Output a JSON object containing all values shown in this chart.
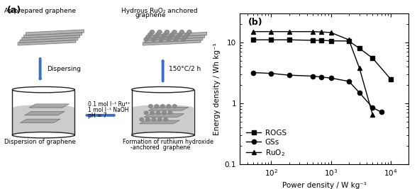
{
  "title_a": "(a)",
  "title_b": "(b)",
  "xlabel": "Power density / W kg⁻¹",
  "ylabel": "Energy density / Wh kg⁻¹",
  "ROGS_x": [
    50,
    100,
    200,
    500,
    700,
    1000,
    2000,
    3000,
    5000,
    10000
  ],
  "ROGS_y": [
    11.0,
    11.0,
    11.0,
    10.8,
    10.8,
    10.6,
    10.5,
    8.0,
    5.5,
    2.5
  ],
  "GSs_x": [
    50,
    100,
    200,
    500,
    700,
    1000,
    2000,
    3000,
    5000,
    7000
  ],
  "GSs_y": [
    3.2,
    3.1,
    2.9,
    2.8,
    2.7,
    2.6,
    2.3,
    1.5,
    0.85,
    0.72
  ],
  "RuO2_x": [
    50,
    100,
    200,
    500,
    700,
    1000,
    2000,
    3000,
    5000
  ],
  "RuO2_y": [
    15.0,
    15.0,
    15.0,
    15.0,
    14.8,
    14.5,
    11.0,
    3.8,
    0.65
  ],
  "xlim": [
    30,
    20000
  ],
  "ylim": [
    0.1,
    30
  ],
  "line_color": "black",
  "bg_color": "white",
  "label_fontsize": 7.5,
  "tick_fontsize": 7.5,
  "legend_fontsize": 7.5,
  "title_fontsize": 9,
  "arrow_color": "#3a6fc4",
  "sheet_color": "#aaaaaa",
  "sheet_edge": "#666666",
  "particle_color": "#888888",
  "cylinder_edge": "#222222",
  "liquid_color": "#cccccc"
}
